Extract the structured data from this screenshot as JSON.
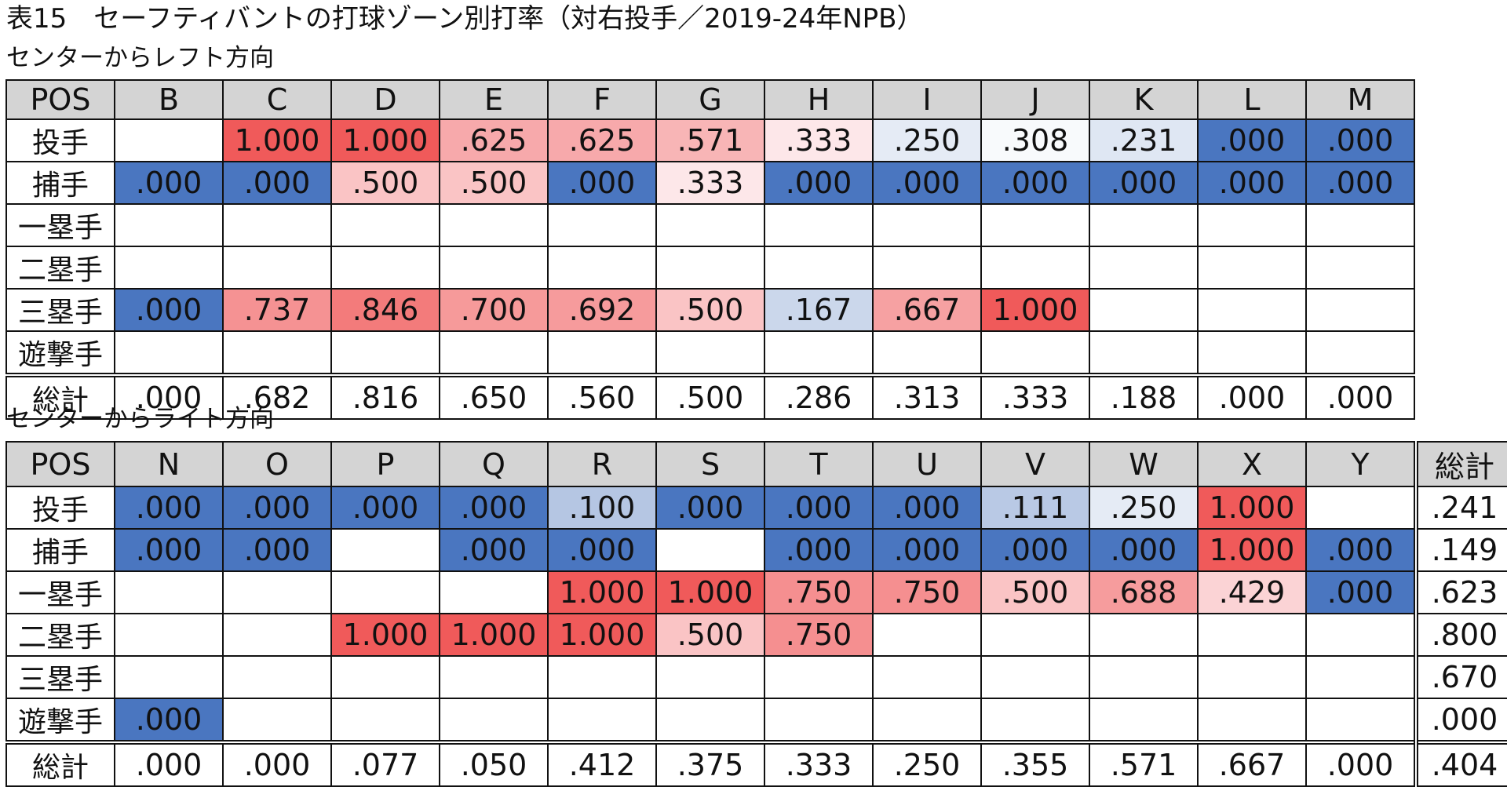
{
  "title": "表15　セーフティバントの打球ゾーン別打率（対右投手／2019-24年NPB）",
  "colors": {
    "header_bg": "#d4d4d4",
    "low_blue": "#4a76c0",
    "high_red": "#f05a5a",
    "neutral": "#ffffff"
  },
  "table_left": {
    "subtitle": "センターからレフト方向",
    "pos_header": "POS",
    "zones": [
      "B",
      "C",
      "D",
      "E",
      "F",
      "G",
      "H",
      "I",
      "J",
      "K",
      "L",
      "M"
    ],
    "rows": [
      {
        "label": "投手",
        "cells": [
          "",
          "1.000",
          "1.000",
          ".625",
          ".625",
          ".571",
          ".333",
          ".250",
          ".308",
          ".231",
          ".000",
          ".000"
        ]
      },
      {
        "label": "捕手",
        "cells": [
          ".000",
          ".000",
          ".500",
          ".500",
          ".000",
          ".333",
          ".000",
          ".000",
          ".000",
          ".000",
          ".000",
          ".000"
        ]
      },
      {
        "label": "一塁手",
        "cells": [
          "",
          "",
          "",
          "",
          "",
          "",
          "",
          "",
          "",
          "",
          "",
          ""
        ]
      },
      {
        "label": "二塁手",
        "cells": [
          "",
          "",
          "",
          "",
          "",
          "",
          "",
          "",
          "",
          "",
          "",
          ""
        ]
      },
      {
        "label": "三塁手",
        "cells": [
          ".000",
          ".737",
          ".846",
          ".700",
          ".692",
          ".500",
          ".167",
          ".667",
          "1.000",
          "",
          "",
          ""
        ]
      },
      {
        "label": "遊撃手",
        "cells": [
          "",
          "",
          "",
          "",
          "",
          "",
          "",
          "",
          "",
          "",
          "",
          ""
        ]
      }
    ],
    "total": {
      "label": "総計",
      "cells": [
        ".000",
        ".682",
        ".816",
        ".650",
        ".560",
        ".500",
        ".286",
        ".313",
        ".333",
        ".188",
        ".000",
        ".000"
      ]
    }
  },
  "table_right": {
    "subtitle": "センターからライト方向",
    "pos_header": "POS",
    "zones": [
      "N",
      "O",
      "P",
      "Q",
      "R",
      "S",
      "T",
      "U",
      "V",
      "W",
      "X",
      "Y"
    ],
    "total_header": "総計",
    "rows": [
      {
        "label": "投手",
        "cells": [
          ".000",
          ".000",
          ".000",
          ".000",
          ".100",
          ".000",
          ".000",
          ".000",
          ".111",
          ".250",
          "1.000",
          ""
        ],
        "total": ".241"
      },
      {
        "label": "捕手",
        "cells": [
          ".000",
          ".000",
          "",
          ".000",
          ".000",
          "",
          ".000",
          ".000",
          ".000",
          ".000",
          "1.000",
          ".000"
        ],
        "total": ".149"
      },
      {
        "label": "一塁手",
        "cells": [
          "",
          "",
          "",
          "",
          "1.000",
          "1.000",
          ".750",
          ".750",
          ".500",
          ".688",
          ".429",
          ".000"
        ],
        "total": ".623"
      },
      {
        "label": "二塁手",
        "cells": [
          "",
          "",
          "1.000",
          "1.000",
          "1.000",
          ".500",
          ".750",
          "",
          "",
          "",
          "",
          ""
        ],
        "total": ".800"
      },
      {
        "label": "三塁手",
        "cells": [
          "",
          "",
          "",
          "",
          "",
          "",
          "",
          "",
          "",
          "",
          "",
          ""
        ],
        "total": ".670"
      },
      {
        "label": "遊撃手",
        "cells": [
          ".000",
          "",
          "",
          "",
          "",
          "",
          "",
          "",
          "",
          "",
          "",
          ""
        ],
        "total": ".000"
      }
    ],
    "total": {
      "label": "総計",
      "cells": [
        ".000",
        ".000",
        ".077",
        ".050",
        ".412",
        ".375",
        ".333",
        ".250",
        ".355",
        ".571",
        ".667",
        ".000"
      ],
      "grand": ".404"
    }
  }
}
